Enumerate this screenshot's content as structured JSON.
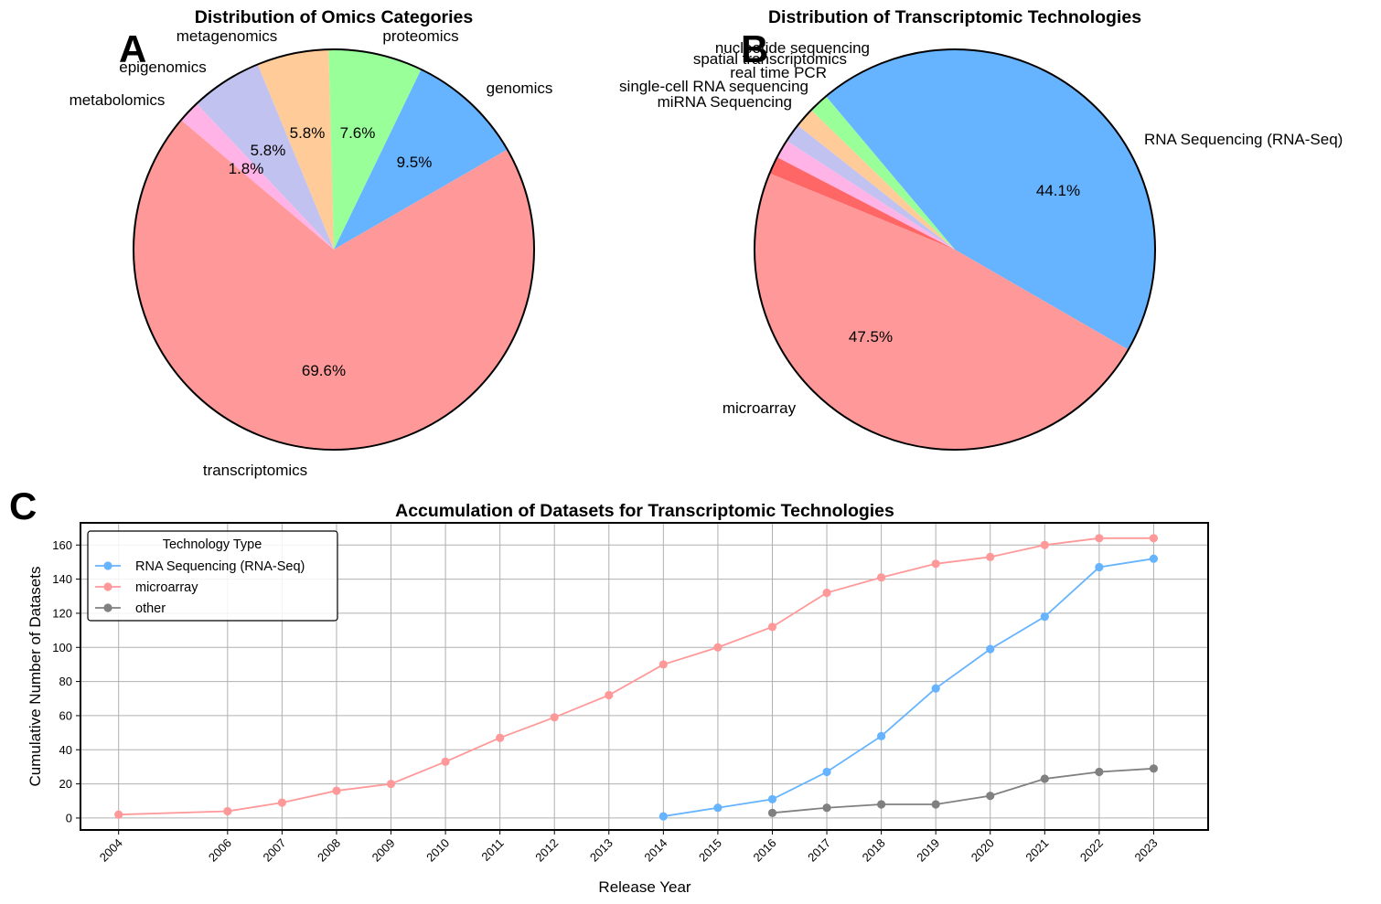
{
  "panel_letters": {
    "a": "A",
    "b": "B",
    "c": "C"
  },
  "colors": {
    "genomics": "#66b3ff",
    "transcriptomics": "#ff9999",
    "proteomics": "#99ff99",
    "metagenomics": "#ffcc99",
    "epigenomics": "#c2c2f0",
    "metabolomics": "#ffb3e6",
    "rna_seq": "#66b3ff",
    "microarray": "#ff9999",
    "other": "#808080",
    "red_slice": "#ff6666"
  },
  "chart_data": [
    {
      "type": "pie",
      "title": "Distribution of Omics Categories",
      "start_angle_deg": 30,
      "direction": "counterclockwise",
      "slices": [
        {
          "label": "genomics",
          "value": 9.5,
          "pct_label": "9.5%",
          "color": "#66b3ff"
        },
        {
          "label": "proteomics",
          "value": 7.6,
          "pct_label": "7.6%",
          "color": "#99ff99"
        },
        {
          "label": "metagenomics",
          "value": 5.8,
          "pct_label": "5.8%",
          "color": "#ffcc99"
        },
        {
          "label": "epigenomics",
          "value": 5.8,
          "pct_label": "5.8%",
          "color": "#c2c2f0"
        },
        {
          "label": "metabolomics",
          "value": 1.8,
          "pct_label": "1.8%",
          "color": "#ffb3e6"
        },
        {
          "label": "transcriptomics",
          "value": 69.6,
          "pct_label": "69.6%",
          "color": "#ff9999"
        }
      ]
    },
    {
      "type": "pie",
      "title": "Distribution of Transcriptomic Technologies",
      "start_angle_deg": -30,
      "direction": "counterclockwise",
      "slices": [
        {
          "label": "RNA Sequencing (RNA-Seq)",
          "value": 44.1,
          "pct_label": "44.1%",
          "color": "#66b3ff"
        },
        {
          "label": "nucleotide sequencing",
          "value": 1.6,
          "pct_label": "",
          "color": "#99ff99"
        },
        {
          "label": "spatial transcriptomics",
          "value": 1.6,
          "pct_label": "",
          "color": "#ffcc99"
        },
        {
          "label": "real time PCR",
          "value": 1.5,
          "pct_label": "",
          "color": "#c2c2f0"
        },
        {
          "label": "single-cell RNA sequencing",
          "value": 1.5,
          "pct_label": "",
          "color": "#ffb3e6"
        },
        {
          "label": "miRNA Sequencing",
          "value": 1.4,
          "pct_label": "",
          "color": "#ff6666"
        },
        {
          "label": "microarray",
          "value": 47.5,
          "pct_label": "47.5%",
          "color": "#ff9999"
        }
      ]
    },
    {
      "type": "line",
      "title": "Accumulation of Datasets for Transcriptomic Technologies",
      "xlabel": "Release Year",
      "ylabel": "Cumulative Number of Datasets",
      "xlim": [
        2003.3,
        2024
      ],
      "ylim": [
        -7,
        173
      ],
      "x_ticks": [
        2004,
        2006,
        2007,
        2008,
        2009,
        2010,
        2011,
        2012,
        2013,
        2014,
        2015,
        2016,
        2017,
        2018,
        2019,
        2020,
        2021,
        2022,
        2023
      ],
      "y_ticks": [
        0,
        20,
        40,
        60,
        80,
        100,
        120,
        140,
        160
      ],
      "grid": true,
      "legend_title": "Technology Type",
      "legend_position": "upper-left",
      "series": [
        {
          "name": "RNA Sequencing (RNA-Seq)",
          "color": "#66b3ff",
          "x": [
            2014,
            2015,
            2016,
            2017,
            2018,
            2019,
            2020,
            2021,
            2022,
            2023
          ],
          "y": [
            1,
            6,
            11,
            27,
            48,
            76,
            99,
            118,
            147,
            152
          ]
        },
        {
          "name": "microarray",
          "color": "#ff9999",
          "x": [
            2004,
            2006,
            2007,
            2008,
            2009,
            2010,
            2011,
            2012,
            2013,
            2014,
            2015,
            2016,
            2017,
            2018,
            2019,
            2020,
            2021,
            2022,
            2023
          ],
          "y": [
            2,
            4,
            9,
            16,
            20,
            33,
            47,
            59,
            72,
            90,
            100,
            112,
            132,
            141,
            149,
            153,
            160,
            164,
            164
          ]
        },
        {
          "name": "other",
          "color": "#808080",
          "x": [
            2016,
            2017,
            2018,
            2019,
            2020,
            2021,
            2022,
            2023
          ],
          "y": [
            3,
            6,
            8,
            8,
            13,
            23,
            27,
            29
          ]
        }
      ]
    }
  ]
}
